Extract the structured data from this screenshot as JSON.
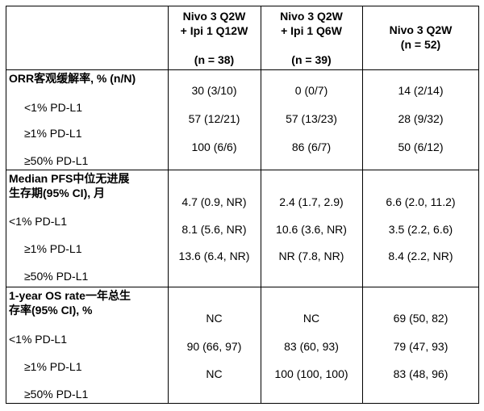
{
  "columns": [
    {
      "line1": "Nivo 3 Q2W",
      "line2": "+ Ipi 1 Q12W",
      "n": "(n = 38)"
    },
    {
      "line1": "Nivo 3 Q2W",
      "line2": "+ Ipi 1 Q6W",
      "n": "(n = 39)"
    },
    {
      "line1": "Nivo 3 Q2W",
      "line2": "",
      "n": "(n = 52)"
    }
  ],
  "sections": [
    {
      "title_line1": "ORR客观缓解率, % (n/N)",
      "title_line2": "",
      "rows": [
        {
          "label": "<1% PD-L1",
          "values": [
            "30 (3/10)",
            "0 (0/7)",
            "14 (2/14)"
          ]
        },
        {
          "label": "≥1% PD-L1",
          "values": [
            "57 (12/21)",
            "57 (13/23)",
            "28 (9/32)"
          ]
        },
        {
          "label": "≥50% PD-L1",
          "values": [
            "100 (6/6)",
            "86 (6/7)",
            "50 (6/12)"
          ]
        }
      ]
    },
    {
      "title_line1": "Median PFS中位无进展",
      "title_line2": "生存期(95% CI), 月",
      "rows": [
        {
          "label": "<1% PD-L1",
          "values": [
            "4.7 (0.9, NR)",
            "2.4 (1.7, 2.9)",
            "6.6 (2.0, 11.2)"
          ]
        },
        {
          "label": "≥1% PD-L1",
          "values": [
            "8.1 (5.6, NR)",
            "10.6 (3.6, NR)",
            "3.5 (2.2, 6.6)"
          ]
        },
        {
          "label": "≥50% PD-L1",
          "values": [
            "13.6 (6.4, NR)",
            "NR (7.8, NR)",
            "8.4 (2.2, NR)"
          ]
        }
      ]
    },
    {
      "title_line1": "1-year OS rate一年总生",
      "title_line2": "存率(95% CI), %",
      "rows": [
        {
          "label": "<1% PD-L1",
          "values": [
            "NC",
            "NC",
            "69 (50, 82)"
          ]
        },
        {
          "label": "≥1% PD-L1",
          "values": [
            "90 (66, 97)",
            "83 (60, 93)",
            "79 (47, 93)"
          ]
        },
        {
          "label": "≥50% PD-L1",
          "values": [
            "NC",
            "100 (100, 100)",
            "83 (48, 96)"
          ]
        }
      ]
    }
  ]
}
